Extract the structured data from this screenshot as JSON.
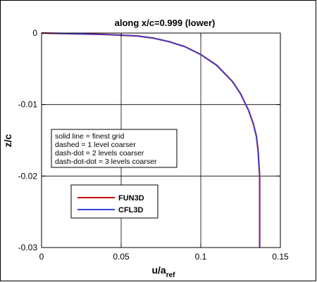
{
  "chart_data": {
    "type": "line",
    "title": "along x/c=0.999 (lower)",
    "xlabel": "u/a",
    "xlabel_sub": "ref",
    "ylabel": "z/c",
    "xlim": [
      0,
      0.15
    ],
    "ylim": [
      -0.03,
      0
    ],
    "xticks": [
      0,
      0.05,
      0.1,
      0.15
    ],
    "xtick_labels": [
      "0",
      "0.05",
      "0.1",
      "0.15"
    ],
    "yticks": [
      0,
      -0.01,
      -0.02,
      -0.03
    ],
    "ytick_labels": [
      "0",
      "-0.01",
      "-0.02",
      "-0.03"
    ],
    "grid": true,
    "annotation": [
      "solid line = finest grid",
      "dashed = 1 level coarser",
      "dash-dot = 2 levels coarser",
      "dash-dot-dot = 3 levels coarser"
    ],
    "legend_position": "lower-left",
    "series": [
      {
        "name": "FUN3D",
        "color": "#cc0000",
        "x": [
          0,
          0.02,
          0.04,
          0.05,
          0.06,
          0.07,
          0.08,
          0.09,
          0.1,
          0.11,
          0.12,
          0.125,
          0.13,
          0.133,
          0.135,
          0.136,
          0.137,
          0.137
        ],
        "y": [
          0,
          -0.0001,
          -0.0002,
          -0.0003,
          -0.0004,
          -0.0007,
          -0.0012,
          -0.0019,
          -0.003,
          -0.0045,
          -0.0068,
          -0.0085,
          -0.0108,
          -0.0127,
          -0.0145,
          -0.0165,
          -0.02,
          -0.03
        ]
      },
      {
        "name": "CFL3D",
        "color": "#3344dd",
        "x": [
          0,
          0.02,
          0.04,
          0.05,
          0.06,
          0.07,
          0.08,
          0.09,
          0.1,
          0.11,
          0.12,
          0.125,
          0.13,
          0.133,
          0.135,
          0.136,
          0.137,
          0.137
        ],
        "y": [
          0,
          -0.0001,
          -0.0002,
          -0.0003,
          -0.0004,
          -0.0007,
          -0.0012,
          -0.0019,
          -0.003,
          -0.0045,
          -0.0068,
          -0.0085,
          -0.0108,
          -0.0127,
          -0.0145,
          -0.0165,
          -0.02,
          -0.03
        ]
      }
    ]
  }
}
